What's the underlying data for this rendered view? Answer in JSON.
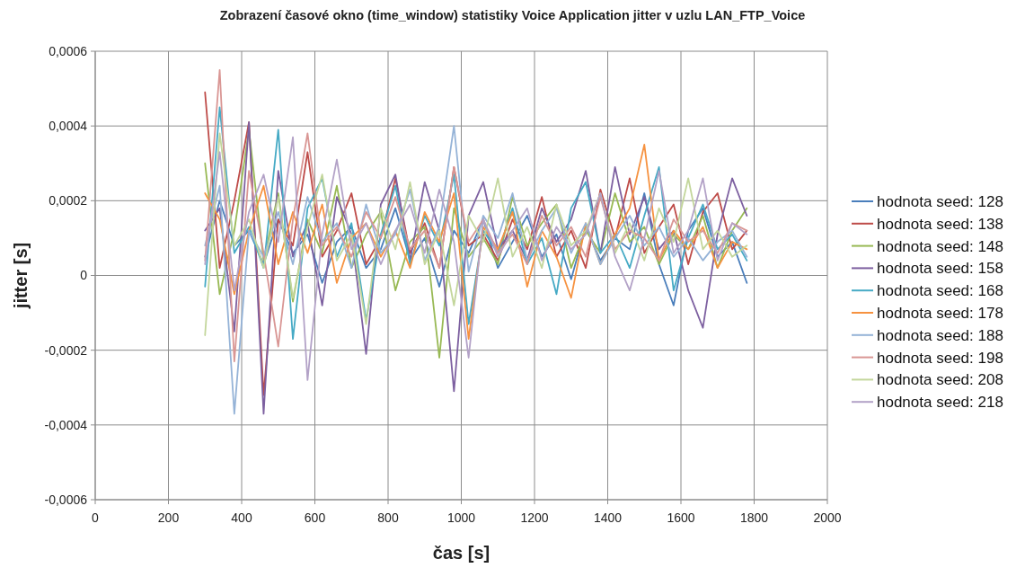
{
  "chart_data": {
    "type": "line",
    "title": "Zobrazení časové okno (time_window) statistiky Voice Application jitter v uzlu LAN_FTP_Voice",
    "xlabel": "čas [s]",
    "ylabel": "jitter [s]",
    "x": [
      300,
      340,
      380,
      420,
      460,
      500,
      540,
      580,
      620,
      660,
      700,
      740,
      780,
      820,
      860,
      900,
      940,
      980,
      1020,
      1060,
      1100,
      1140,
      1180,
      1220,
      1260,
      1300,
      1340,
      1380,
      1420,
      1460,
      1500,
      1540,
      1580,
      1620,
      1660,
      1700,
      1740,
      1780
    ],
    "xlim": [
      0,
      2000
    ],
    "xticks": [
      0,
      200,
      400,
      600,
      800,
      1000,
      1200,
      1400,
      1600,
      1800,
      2000
    ],
    "ylim": [
      -0.0006,
      0.0006
    ],
    "yticks": [
      {
        "value": -0.0006,
        "label": "-0,0006"
      },
      {
        "value": -0.0004,
        "label": "-0,0004"
      },
      {
        "value": -0.0002,
        "label": "-0,0002"
      },
      {
        "value": 0,
        "label": "0"
      },
      {
        "value": 0.0002,
        "label": "0,0002"
      },
      {
        "value": 0.0004,
        "label": "0,0004"
      },
      {
        "value": 0.0006,
        "label": "0,0006"
      }
    ],
    "grid": true,
    "legend": "right",
    "marker": "none",
    "line_style": "solid",
    "series": [
      {
        "name": "hodnota seed: 128",
        "color": "#4a7ebb",
        "values": [
          5e-05,
          0.0002,
          8e-05,
          0.00012,
          3e-05,
          0.00015,
          6e-05,
          0.00011,
          -2e-05,
          9e-05,
          0.00013,
          2e-05,
          7e-05,
          0.00018,
          4e-05,
          0.0001,
          -3e-05,
          0.00012,
          6e-05,
          0.00015,
          2e-05,
          9e-05,
          0.00016,
          5e-05,
          0.00011,
          -1e-05,
          0.00013,
          4e-05,
          0.0001,
          7e-05,
          0.00022,
          3e-05,
          -8e-05,
          0.00012,
          0.00018,
          5e-05,
          9e-05,
          -2e-05
        ]
      },
      {
        "name": "hodnota seed: 138",
        "color": "#be4b48",
        "values": [
          0.00049,
          2e-05,
          0.0002,
          0.00041,
          -0.00032,
          0.00015,
          8e-05,
          0.00033,
          5e-05,
          0.00012,
          0.00022,
          3e-05,
          0.0001,
          0.00026,
          6e-05,
          0.00014,
          2e-05,
          0.00029,
          8e-05,
          0.00011,
          4e-05,
          0.00015,
          7e-05,
          0.00021,
          5e-05,
          0.00012,
          2e-05,
          0.00023,
          0.0001,
          0.00026,
          6e-05,
          0.00013,
          0.00019,
          3e-05,
          0.00017,
          0.00022,
          7e-05,
          0.00012
        ]
      },
      {
        "name": "hodnota seed: 148",
        "color": "#98b954",
        "values": [
          0.0003,
          -5e-05,
          0.00012,
          0.00039,
          4e-05,
          0.00022,
          -7e-05,
          0.00015,
          6e-05,
          0.00024,
          2e-05,
          0.00011,
          0.00017,
          -4e-05,
          9e-05,
          0.00013,
          -0.00022,
          0.00018,
          5e-05,
          0.0001,
          3e-05,
          0.00021,
          8e-05,
          0.00014,
          0.00019,
          2e-05,
          0.00012,
          6e-05,
          0.00022,
          9e-05,
          0.00013,
          3e-05,
          0.00011,
          7e-05,
          0.00016,
          2e-05,
          0.00012,
          0.00018
        ]
      },
      {
        "name": "hodnota seed: 158",
        "color": "#7d60a0",
        "values": [
          0.00012,
          0.00018,
          -0.00015,
          0.00041,
          -0.00037,
          0.00028,
          5e-05,
          0.00014,
          -8e-05,
          0.00021,
          0.00011,
          -0.00021,
          0.00019,
          0.00027,
          4e-05,
          0.00025,
          0.00012,
          -0.00031,
          0.00016,
          0.00025,
          7e-05,
          0.00012,
          4e-05,
          0.00018,
          9e-05,
          0.00015,
          0.00028,
          6e-05,
          0.00029,
          0.00011,
          0.00021,
          7e-05,
          0.00012,
          -4e-05,
          -0.00014,
          0.00011,
          0.00026,
          0.00016
        ]
      },
      {
        "name": "hodnota seed: 168",
        "color": "#46aac5",
        "values": [
          -3e-05,
          0.00045,
          6e-05,
          0.00013,
          2e-05,
          0.00039,
          -0.00017,
          0.00018,
          0.00026,
          5e-05,
          0.00014,
          -0.00012,
          0.00011,
          0.00024,
          3e-05,
          0.00016,
          8e-05,
          0.00027,
          -0.00013,
          0.00012,
          6e-05,
          0.00018,
          3e-05,
          0.0001,
          -5e-05,
          0.00018,
          0.00025,
          6e-05,
          0.00011,
          2e-05,
          0.00016,
          0.00029,
          -4e-05,
          0.0001,
          0.00019,
          7e-05,
          0.00011,
          4e-05
        ]
      },
      {
        "name": "hodnota seed: 178",
        "color": "#f69240",
        "values": [
          0.00022,
          0.00015,
          -5e-05,
          0.00012,
          0.00024,
          3e-05,
          0.00017,
          6e-05,
          0.00019,
          -2e-05,
          0.0001,
          0.00014,
          5e-05,
          0.00012,
          2e-05,
          0.00017,
          9e-05,
          0.00022,
          -0.00017,
          0.00013,
          7e-05,
          0.00017,
          -3e-05,
          0.00012,
          5e-05,
          -6e-05,
          0.00014,
          3e-05,
          0.00011,
          0.00018,
          0.00035,
          4e-05,
          0.00012,
          7e-05,
          0.00013,
          2e-05,
          9e-05,
          7e-05
        ]
      },
      {
        "name": "hodnota seed: 188",
        "color": "#95b3d7",
        "values": [
          8e-05,
          0.00024,
          -0.00037,
          0.00012,
          5e-05,
          0.00017,
          3e-05,
          0.00021,
          9e-05,
          0.00014,
          2e-05,
          0.00019,
          6e-05,
          0.00011,
          0.00023,
          4e-05,
          0.00013,
          0.0004,
          1e-05,
          0.00016,
          0.0001,
          0.00022,
          4e-05,
          0.00012,
          0.00018,
          6e-05,
          0.00014,
          3e-05,
          0.0001,
          0.00016,
          8e-05,
          0.00013,
          5e-05,
          0.0001,
          4e-05,
          9e-05,
          0.00012,
          5e-05
        ]
      },
      {
        "name": "hodnota seed: 198",
        "color": "#d99694",
        "values": [
          4e-05,
          0.00055,
          -0.00023,
          0.00028,
          6e-05,
          -0.00019,
          0.00015,
          0.00038,
          8e-05,
          0.00013,
          5e-05,
          0.00017,
          0.0001,
          0.00021,
          7e-05,
          0.00012,
          2e-05,
          0.00029,
          9e-05,
          0.00015,
          6e-05,
          0.00011,
          3e-05,
          0.00016,
          8e-05,
          0.00013,
          5e-05,
          0.00021,
          7e-05,
          0.00012,
          0.0001,
          4e-05,
          0.00015,
          9e-05,
          0.00012,
          6e-05,
          0.00014,
          0.00012
        ]
      },
      {
        "name": "hodnota seed: 208",
        "color": "#c3d69b",
        "values": [
          -0.00016,
          0.00038,
          8e-05,
          0.00015,
          2e-05,
          0.00021,
          -6e-05,
          0.00013,
          0.00027,
          4e-05,
          0.00011,
          -0.00013,
          0.00018,
          7e-05,
          0.00025,
          3e-05,
          0.00012,
          -8e-05,
          0.00016,
          9e-05,
          0.00026,
          5e-05,
          0.00013,
          2e-05,
          0.00019,
          8e-05,
          0.00012,
          0.00022,
          6e-05,
          0.00014,
          4e-05,
          0.00018,
          9e-05,
          0.00026,
          7e-05,
          0.00012,
          5e-05,
          8e-05
        ]
      },
      {
        "name": "hodnota seed: 218",
        "color": "#b3a2c7",
        "values": [
          3e-05,
          0.00033,
          -4e-05,
          0.00017,
          0.00027,
          9e-05,
          0.00037,
          -0.00028,
          0.00011,
          0.00031,
          7e-05,
          0.00014,
          3e-05,
          0.00012,
          0.00019,
          6e-05,
          0.00023,
          9e-05,
          -0.00022,
          0.00015,
          5e-05,
          0.00012,
          0.00018,
          4e-05,
          0.00013,
          7e-05,
          0.00011,
          0.00022,
          5e-05,
          -4e-05,
          0.0001,
          0.00028,
          6e-05,
          0.00012,
          0.00026,
          4e-05,
          0.00014,
          0.00011
        ]
      }
    ]
  }
}
